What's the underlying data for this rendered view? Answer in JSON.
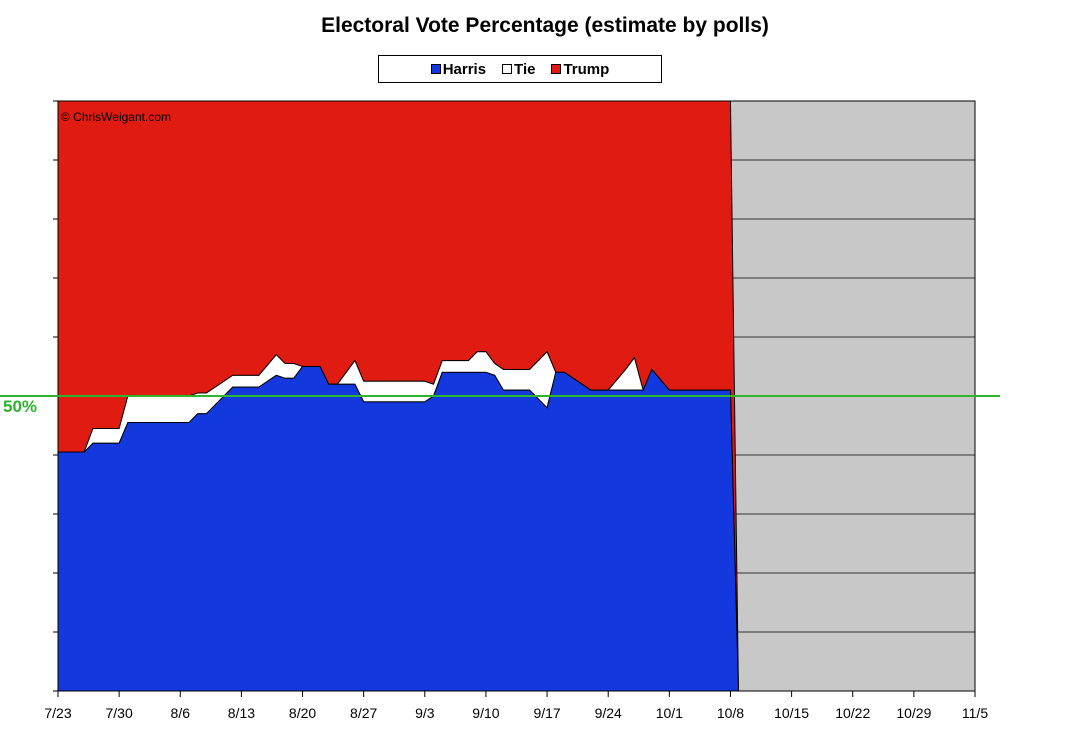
{
  "chart_data": {
    "type": "area",
    "title": "Electoral Vote Percentage (estimate by polls)",
    "copyright": "© ChrisWeigant.com",
    "legend": [
      {
        "name": "Harris",
        "color": "#1238de"
      },
      {
        "name": "Tie",
        "color": "#ffffff"
      },
      {
        "name": "Trump",
        "color": "#e01c12"
      }
    ],
    "legend_position": "top-center",
    "reference_line": {
      "value": 50,
      "label": "50%",
      "color": "#2db52d"
    },
    "x_tick_labels": [
      "7/23",
      "7/30",
      "8/6",
      "8/13",
      "8/20",
      "8/27",
      "9/3",
      "9/10",
      "9/17",
      "9/24",
      "10/1",
      "10/8",
      "10/15",
      "10/22",
      "10/29",
      "11/5"
    ],
    "x_range_days": [
      0,
      105
    ],
    "ylim": [
      0,
      100
    ],
    "no_data_color": "#c8c8c8",
    "data_end_day": 77,
    "x_days": [
      0,
      3,
      4,
      7,
      8,
      15,
      16,
      17,
      20,
      21,
      22,
      23,
      25,
      26,
      27,
      28,
      30,
      31,
      32,
      34,
      35,
      37,
      38,
      40,
      42,
      43,
      44,
      47,
      48,
      49,
      50,
      51,
      52,
      54,
      56,
      57,
      58,
      61,
      62,
      63,
      65,
      66,
      67,
      68,
      70,
      72,
      73,
      74,
      77
    ],
    "series": [
      {
        "name": "Harris",
        "values": [
          40.5,
          40.5,
          42,
          42,
          45.5,
          45.5,
          47,
          47,
          51.5,
          51.5,
          51.5,
          51.5,
          53.5,
          53,
          53,
          55,
          55,
          52,
          52,
          52,
          49,
          49,
          49,
          49,
          49,
          50,
          54,
          54,
          54,
          54,
          53.5,
          51,
          51,
          51,
          48,
          54,
          54,
          51,
          51,
          51,
          51,
          51,
          51,
          54.5,
          51,
          51,
          51,
          51,
          51
        ]
      },
      {
        "name": "Tie",
        "values": [
          0,
          0,
          2.5,
          2.5,
          4.5,
          4.5,
          3.5,
          3.5,
          2,
          2,
          2,
          2,
          3.5,
          2.5,
          2.5,
          0,
          0,
          0,
          0,
          4,
          3.5,
          3.5,
          3.5,
          3.5,
          3.5,
          2,
          2,
          2,
          3.5,
          3.5,
          2,
          3.5,
          3.5,
          3.5,
          9.5,
          0,
          0,
          0,
          0,
          0,
          3.5,
          5.5,
          0,
          0,
          0,
          0,
          0,
          0,
          0
        ]
      },
      {
        "name": "Trump",
        "values": [
          59.5,
          59.5,
          55.5,
          55.5,
          50,
          50,
          49.5,
          49.5,
          46.5,
          46.5,
          46.5,
          46.5,
          43,
          44.5,
          44.5,
          45,
          45,
          48,
          48,
          44,
          47.5,
          47.5,
          47.5,
          47.5,
          47.5,
          48,
          44,
          44,
          42.5,
          42.5,
          44.5,
          45.5,
          45.5,
          45.5,
          42.5,
          46,
          46,
          49,
          49,
          49,
          45.5,
          43.5,
          49,
          45.5,
          49,
          49,
          49,
          49,
          49
        ]
      }
    ]
  }
}
